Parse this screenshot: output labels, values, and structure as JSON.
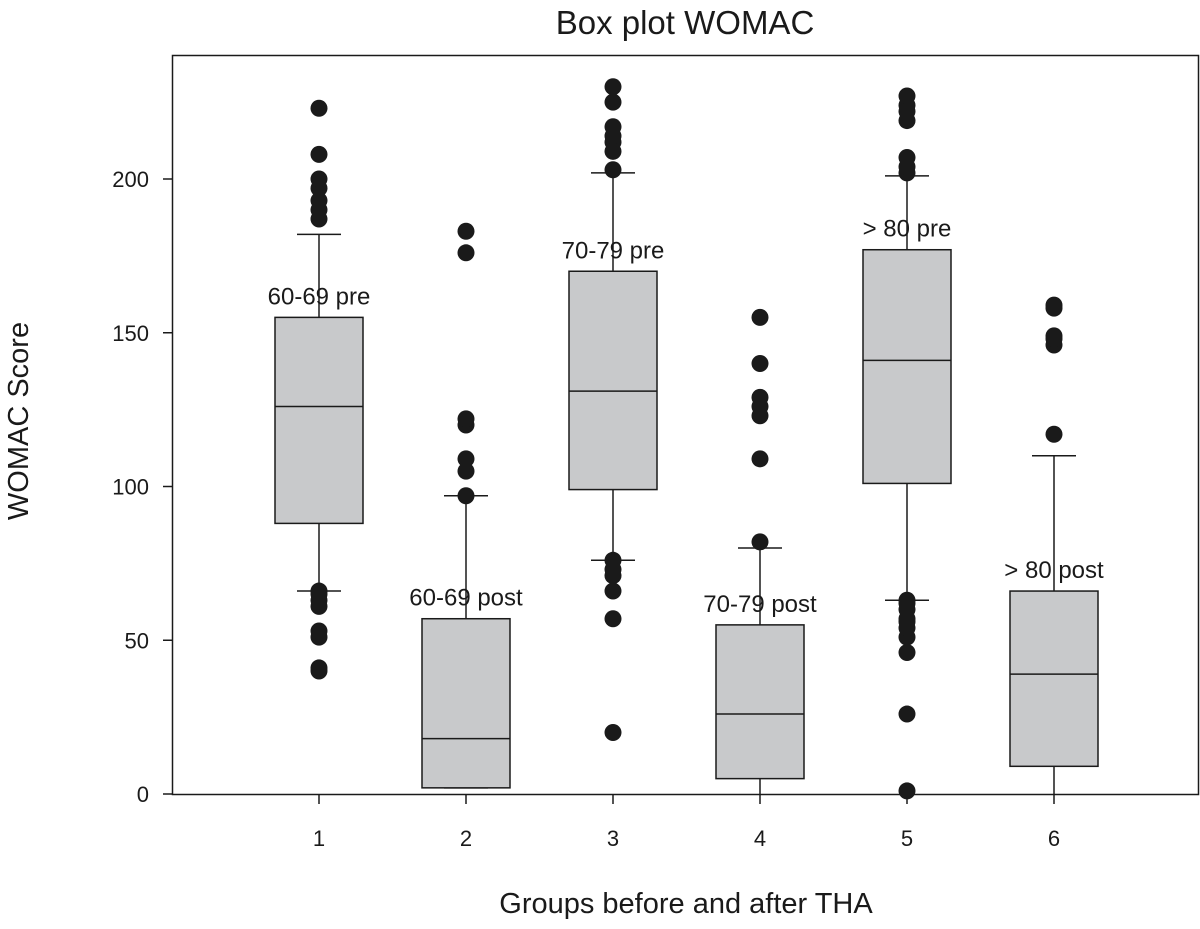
{
  "chart_data": {
    "type": "box",
    "title": "Box plot WOMAC",
    "xlabel": "Groups before and after THA",
    "ylabel": "WOMAC Score",
    "ylim": [
      0,
      230
    ],
    "yticks": [
      0,
      50,
      100,
      150,
      200
    ],
    "grid": false,
    "categories": [
      "1",
      "2",
      "3",
      "4",
      "5",
      "6"
    ],
    "series": [
      {
        "category": "1",
        "label": "60-69 pre",
        "q1": 88,
        "median": 126,
        "q3": 155,
        "whisker_low": 66,
        "whisker_high": 182,
        "outliers": [
          40,
          41,
          51,
          53,
          61,
          63,
          65,
          66,
          187,
          190,
          193,
          197,
          200,
          208,
          223
        ]
      },
      {
        "category": "2",
        "label": "60-69 post",
        "q1": 2,
        "median": 18,
        "q3": 57,
        "whisker_low": 2,
        "whisker_high": 97,
        "outliers": [
          97,
          105,
          109,
          120,
          122,
          176,
          183
        ]
      },
      {
        "category": "3",
        "label": "70-79 pre",
        "q1": 99,
        "median": 131,
        "q3": 170,
        "whisker_low": 76,
        "whisker_high": 202,
        "outliers": [
          20,
          57,
          66,
          71,
          73,
          76,
          203,
          209,
          212,
          214,
          217,
          225,
          230
        ]
      },
      {
        "category": "4",
        "label": "70-79 post",
        "q1": 5,
        "median": 26,
        "q3": 55,
        "whisker_low": 0,
        "whisker_high": 80,
        "outliers": [
          82,
          109,
          123,
          126,
          129,
          140,
          155
        ]
      },
      {
        "category": "5",
        "label": "> 80 pre",
        "q1": 101,
        "median": 141,
        "q3": 177,
        "whisker_low": 63,
        "whisker_high": 201,
        "outliers": [
          1,
          26,
          46,
          51,
          54,
          56,
          57,
          60,
          62,
          63,
          202,
          204,
          207,
          219,
          222,
          224,
          227
        ]
      },
      {
        "category": "6",
        "label": "> 80 post",
        "q1": 9,
        "median": 39,
        "q3": 66,
        "whisker_low": 0,
        "whisker_high": 110,
        "outliers": [
          117,
          146,
          148,
          149,
          158,
          159
        ]
      }
    ]
  }
}
